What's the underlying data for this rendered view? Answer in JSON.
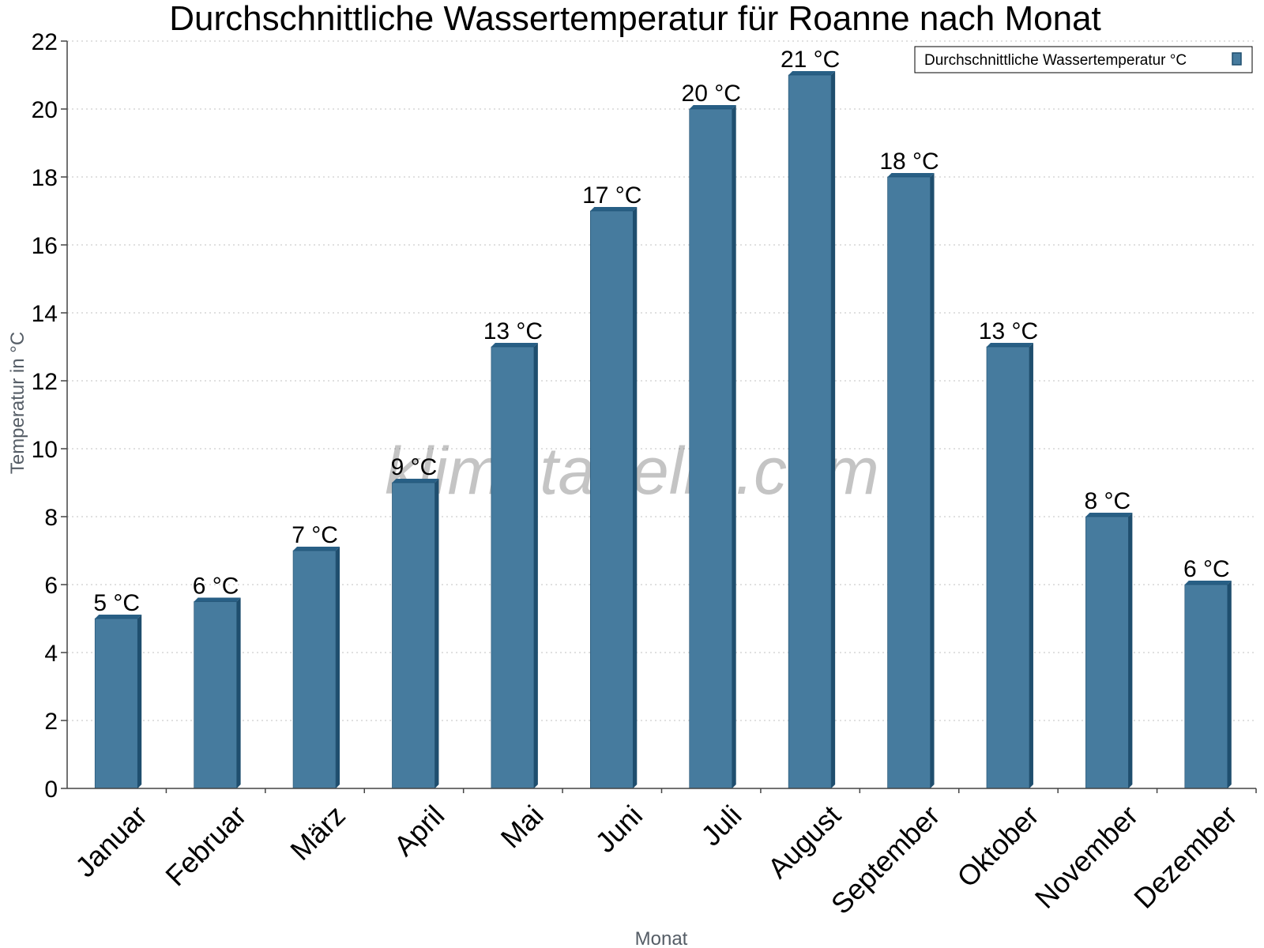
{
  "chart_data": {
    "type": "bar",
    "title": "Durchschnittliche Wassertemperatur für Roanne nach Monat",
    "xlabel": "Monat",
    "ylabel": "Temperatur in °C",
    "categories": [
      "Januar",
      "Februar",
      "März",
      "April",
      "Mai",
      "Juni",
      "Juli",
      "August",
      "September",
      "Oktober",
      "November",
      "Dezember"
    ],
    "series": [
      {
        "name": "Durchschnittliche Wassertemperatur °C",
        "values": [
          5,
          5.5,
          7,
          9,
          13,
          17,
          20,
          21,
          18,
          13,
          8,
          6
        ],
        "labels": [
          "5 °C",
          "6 °C",
          "7 °C",
          "9 °C",
          "13 °C",
          "17 °C",
          "20 °C",
          "21 °C",
          "18 °C",
          "13 °C",
          "8 °C",
          "6 °C"
        ]
      }
    ],
    "ylim": [
      0,
      22
    ],
    "yticks": [
      "0",
      "2",
      "4",
      "6",
      "8",
      "10",
      "12",
      "14",
      "16",
      "18",
      "20",
      "22"
    ],
    "grid": true,
    "legend_position": "top-right",
    "watermark": "klimatabelle.com",
    "colors": {
      "bar": "#467b9e",
      "bar_side": "#1f4e6e",
      "bar_top": "#285f85",
      "grid": "#c0c0c0",
      "axis": "#444444"
    }
  }
}
